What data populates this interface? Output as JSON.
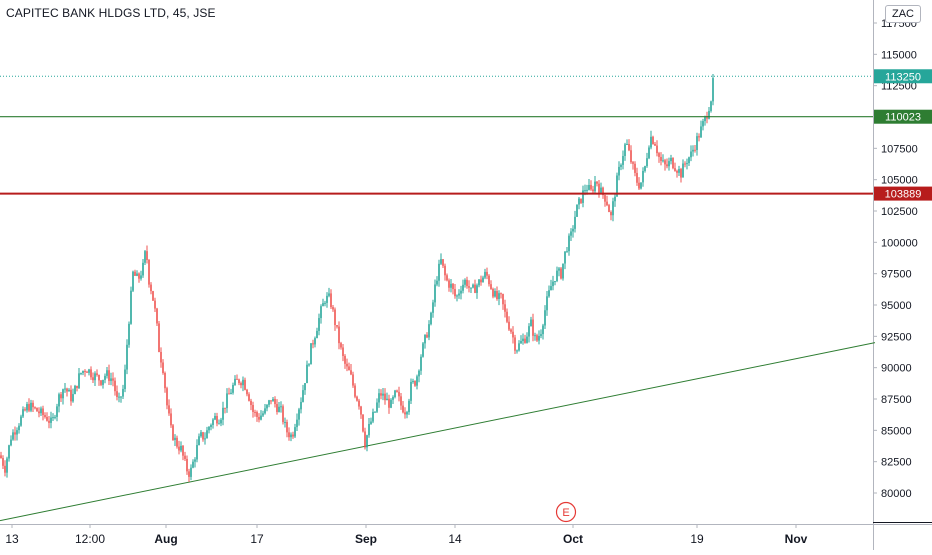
{
  "header": {
    "title": "CAPITEC BANK HLDGS LTD, 45, JSE",
    "currency": "ZAC"
  },
  "colors": {
    "up": "#26a69a",
    "down": "#ef5350",
    "support_line": "#2e7d32",
    "resistance_line": "#b71c1c",
    "last_price": "#26a69a",
    "event_marker": "#e53935"
  },
  "chart_data": {
    "type": "candlestick",
    "symbol": "CAPITEC BANK HLDGS LTD",
    "interval": "45",
    "exchange": "JSE",
    "x_tick_labels": [
      "13",
      "12:00",
      "Aug",
      "17",
      "Sep",
      "14",
      "Oct",
      "19",
      "Nov"
    ],
    "y_ticks": [
      80000,
      82500,
      85000,
      87500,
      90000,
      92500,
      95000,
      97500,
      100000,
      102500,
      105000,
      107500,
      110000,
      112500,
      115000,
      117500
    ],
    "y_range": [
      77500,
      120000
    ],
    "grid": false,
    "price_anchors": [
      [
        0,
        83000
      ],
      [
        5,
        82000
      ],
      [
        11,
        84500
      ],
      [
        18,
        85500
      ],
      [
        28,
        87000
      ],
      [
        38,
        86500
      ],
      [
        47,
        86000
      ],
      [
        52,
        85500
      ],
      [
        58,
        87500
      ],
      [
        64,
        88500
      ],
      [
        72,
        87500
      ],
      [
        80,
        89500
      ],
      [
        86,
        90000
      ],
      [
        92,
        89500
      ],
      [
        101,
        89000
      ],
      [
        106,
        89500
      ],
      [
        113,
        89000
      ],
      [
        118,
        87000
      ],
      [
        124,
        88500
      ],
      [
        128,
        93000
      ],
      [
        133,
        97500
      ],
      [
        138,
        97000
      ],
      [
        143,
        98000
      ],
      [
        146,
        99500
      ],
      [
        149,
        97000
      ],
      [
        152,
        96000
      ],
      [
        156,
        94000
      ],
      [
        159,
        91500
      ],
      [
        163,
        90000
      ],
      [
        167,
        87000
      ],
      [
        171,
        85000
      ],
      [
        176,
        84000
      ],
      [
        181,
        83500
      ],
      [
        186,
        82000
      ],
      [
        190,
        81500
      ],
      [
        195,
        83000
      ],
      [
        200,
        84500
      ],
      [
        205,
        84500
      ],
      [
        210,
        85500
      ],
      [
        215,
        86000
      ],
      [
        220,
        86000
      ],
      [
        227,
        87500
      ],
      [
        233,
        88500
      ],
      [
        238,
        89000
      ],
      [
        243,
        89000
      ],
      [
        248,
        88000
      ],
      [
        253,
        86500
      ],
      [
        258,
        86000
      ],
      [
        265,
        86500
      ],
      [
        271,
        87500
      ],
      [
        276,
        87000
      ],
      [
        281,
        86500
      ],
      [
        286,
        85000
      ],
      [
        292,
        84500
      ],
      [
        296,
        86000
      ],
      [
        301,
        87500
      ],
      [
        306,
        89500
      ],
      [
        311,
        91500
      ],
      [
        316,
        93000
      ],
      [
        321,
        94500
      ],
      [
        325,
        95500
      ],
      [
        330,
        95500
      ],
      [
        334,
        94000
      ],
      [
        338,
        92500
      ],
      [
        342,
        91000
      ],
      [
        346,
        90000
      ],
      [
        350,
        89500
      ],
      [
        355,
        88000
      ],
      [
        360,
        87000
      ],
      [
        365,
        84000
      ],
      [
        370,
        85500
      ],
      [
        375,
        86500
      ],
      [
        380,
        88000
      ],
      [
        385,
        87500
      ],
      [
        391,
        87000
      ],
      [
        396,
        88000
      ],
      [
        401,
        87000
      ],
      [
        406,
        86500
      ],
      [
        411,
        88500
      ],
      [
        416,
        89000
      ],
      [
        421,
        91000
      ],
      [
        426,
        92500
      ],
      [
        431,
        94000
      ],
      [
        436,
        97000
      ],
      [
        441,
        98500
      ],
      [
        446,
        97000
      ],
      [
        451,
        96500
      ],
      [
        456,
        95500
      ],
      [
        461,
        96500
      ],
      [
        466,
        97000
      ],
      [
        471,
        96000
      ],
      [
        476,
        96500
      ],
      [
        481,
        97000
      ],
      [
        486,
        97500
      ],
      [
        491,
        96500
      ],
      [
        496,
        95500
      ],
      [
        501,
        95500
      ],
      [
        506,
        94000
      ],
      [
        511,
        93000
      ],
      [
        516,
        91500
      ],
      [
        521,
        92000
      ],
      [
        526,
        92500
      ],
      [
        531,
        93500
      ],
      [
        536,
        92000
      ],
      [
        541,
        93000
      ],
      [
        546,
        95000
      ],
      [
        551,
        96500
      ],
      [
        556,
        97500
      ],
      [
        561,
        97500
      ],
      [
        566,
        99500
      ],
      [
        571,
        100500
      ],
      [
        576,
        102500
      ],
      [
        581,
        103500
      ],
      [
        586,
        104500
      ],
      [
        591,
        104000
      ],
      [
        596,
        105000
      ],
      [
        601,
        104000
      ],
      [
        606,
        103500
      ],
      [
        611,
        102000
      ],
      [
        616,
        104500
      ],
      [
        621,
        106500
      ],
      [
        626,
        108000
      ],
      [
        631,
        106500
      ],
      [
        636,
        105000
      ],
      [
        640,
        104500
      ],
      [
        645,
        106000
      ],
      [
        650,
        108500
      ],
      [
        655,
        108000
      ],
      [
        660,
        106500
      ],
      [
        666,
        106000
      ],
      [
        671,
        106500
      ],
      [
        676,
        106000
      ],
      [
        681,
        105500
      ],
      [
        686,
        106500
      ],
      [
        691,
        107000
      ],
      [
        696,
        108000
      ],
      [
        701,
        109000
      ],
      [
        706,
        110000
      ],
      [
        711,
        111500
      ],
      [
        714,
        113250
      ]
    ],
    "horizontal_lines": [
      {
        "price": 110023,
        "label": "110023",
        "color": "#2e7d32"
      },
      {
        "price": 103889,
        "label": "103889",
        "color": "#b71c1c"
      }
    ],
    "trendline": {
      "start": {
        "bar": 0,
        "price": 77800
      },
      "end": {
        "bar": 875,
        "price": 92000
      },
      "color": "#2e7d32"
    },
    "last_price": {
      "price": 113250,
      "label": "113250"
    },
    "event_marker": {
      "bar": 566,
      "label": "E"
    }
  }
}
